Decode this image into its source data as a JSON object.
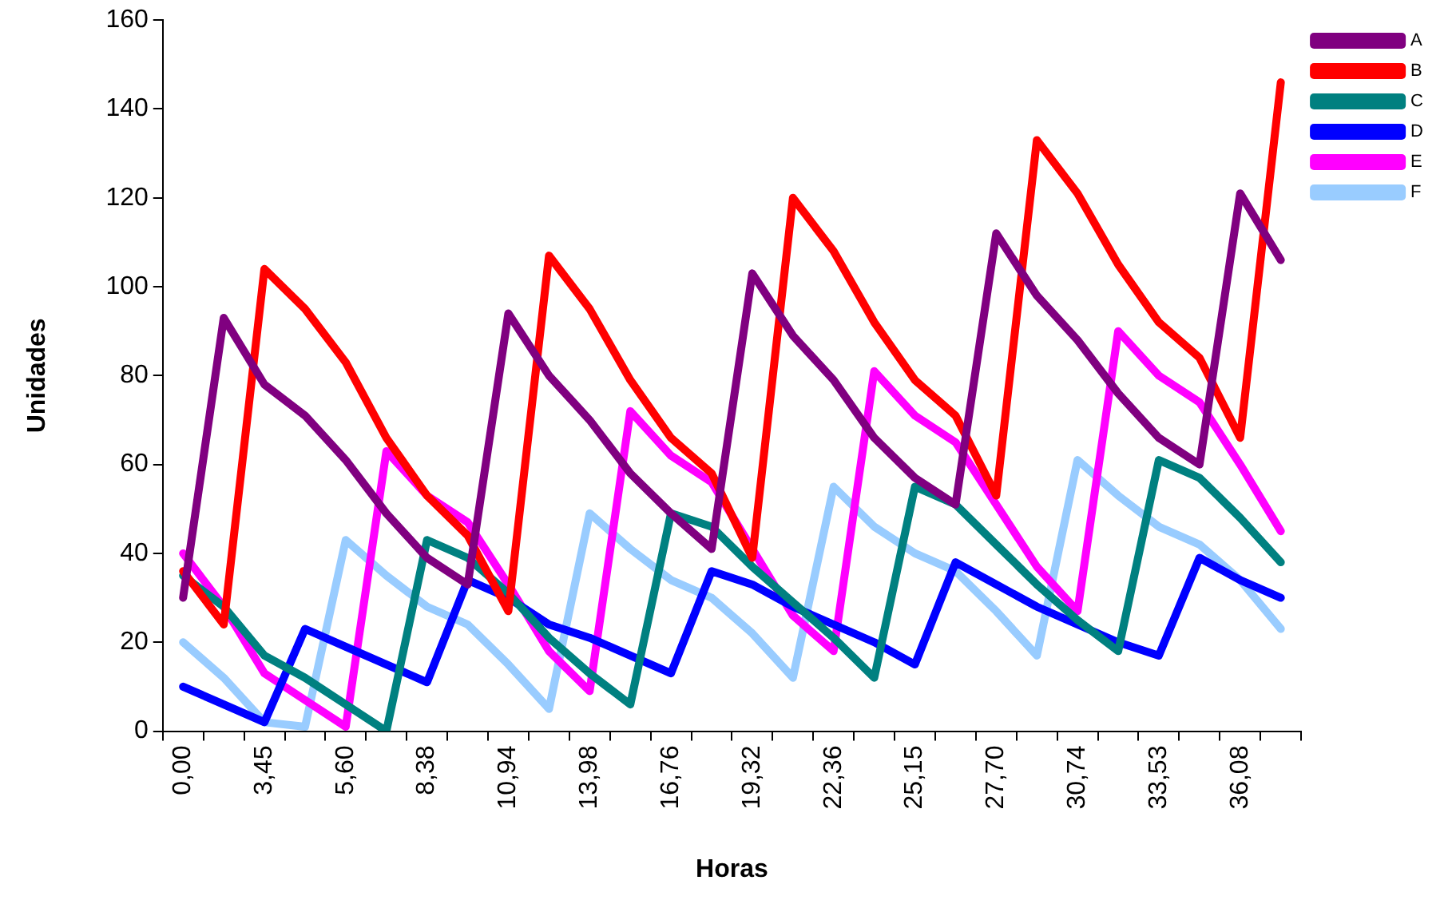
{
  "chart_data": {
    "type": "line",
    "xlabel": "Horas",
    "ylabel": "Unidades",
    "categories": [
      "0,00",
      null,
      "3,45",
      null,
      "5,60",
      null,
      "8,38",
      null,
      "10,94",
      null,
      "13,98",
      null,
      "16,76",
      null,
      "19,32",
      null,
      "22,36",
      null,
      "25,15",
      null,
      "27,70",
      null,
      "30,74",
      null,
      "33,53",
      null,
      "36,08",
      null
    ],
    "ylim": [
      0,
      160
    ],
    "yticks": [
      0,
      20,
      40,
      60,
      80,
      100,
      120,
      140,
      160
    ],
    "grid": false,
    "legend": "right",
    "marker": "none",
    "line_style": "solid",
    "series": [
      {
        "name": "A",
        "color": "#800080",
        "values": [
          30,
          93,
          78,
          71,
          61,
          49,
          39,
          33,
          94,
          80,
          70,
          58,
          49,
          41,
          103,
          89,
          79,
          66,
          57,
          51,
          112,
          98,
          88,
          76,
          66,
          60,
          121,
          106
        ]
      },
      {
        "name": "B",
        "color": "#ff0000",
        "values": [
          36,
          24,
          104,
          95,
          83,
          66,
          53,
          44,
          27,
          107,
          95,
          79,
          66,
          58,
          39,
          120,
          108,
          92,
          79,
          71,
          53,
          133,
          121,
          105,
          92,
          84,
          66,
          146
        ]
      },
      {
        "name": "C",
        "color": "#008080",
        "values": [
          35,
          28,
          17,
          12,
          6,
          0,
          43,
          39,
          31,
          21,
          13,
          6,
          49,
          46,
          37,
          29,
          21,
          12,
          55,
          51,
          42,
          33,
          25,
          18,
          61,
          57,
          48,
          38
        ]
      },
      {
        "name": "D",
        "color": "#0000ff",
        "values": [
          10,
          6,
          2,
          23,
          19,
          15,
          11,
          34,
          30,
          24,
          21,
          17,
          13,
          36,
          33,
          28,
          24,
          20,
          15,
          38,
          33,
          28,
          24,
          20,
          17,
          39,
          34,
          30
        ]
      },
      {
        "name": "E",
        "color": "#ff00ff",
        "values": [
          40,
          28,
          13,
          7,
          1,
          63,
          53,
          47,
          33,
          18,
          9,
          72,
          62,
          56,
          41,
          26,
          18,
          81,
          71,
          65,
          51,
          37,
          27,
          90,
          80,
          74,
          60,
          45
        ]
      },
      {
        "name": "F",
        "color": "#99ccff",
        "values": [
          20,
          12,
          2,
          1,
          43,
          35,
          28,
          24,
          15,
          5,
          49,
          41,
          34,
          30,
          22,
          12,
          55,
          46,
          40,
          36,
          27,
          17,
          61,
          53,
          46,
          42,
          34,
          23
        ]
      }
    ]
  }
}
